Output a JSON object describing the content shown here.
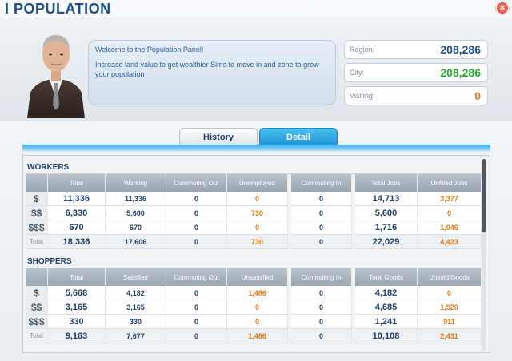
{
  "window": {
    "title": "I POPULATION",
    "close_label": "×"
  },
  "advisor": {
    "line1": "Welcome to the Population Panel!",
    "line2": "Increase land value to get wealthier Sims to move in and zone to grow your population"
  },
  "stats": {
    "region": {
      "label": "Region:",
      "value": "208,286",
      "color": "#1a4f8a"
    },
    "city": {
      "label": "City:",
      "value": "208,286",
      "color": "#2aa32a"
    },
    "visiting": {
      "label": "Visiting:",
      "value": "0",
      "color": "#e07a10"
    }
  },
  "tabs": {
    "history": "History",
    "detail": "Detail"
  },
  "workers": {
    "title": "WORKERS",
    "headers": [
      "Total",
      "Working",
      "Commuting Out",
      "Unemployed",
      "Commuting In",
      "Total Jobs",
      "Unfilled Jobs"
    ],
    "rows": [
      {
        "icon": "$",
        "total": "11,336",
        "working": "11,336",
        "out": "0",
        "unemployed": "0",
        "in": "0",
        "jobs": "14,713",
        "unfilled": "3,377"
      },
      {
        "icon": "$$",
        "total": "6,330",
        "working": "5,600",
        "out": "0",
        "unemployed": "730",
        "in": "0",
        "jobs": "5,600",
        "unfilled": "0"
      },
      {
        "icon": "$$$",
        "total": "670",
        "working": "670",
        "out": "0",
        "unemployed": "0",
        "in": "0",
        "jobs": "1,716",
        "unfilled": "1,046"
      },
      {
        "icon": "Total",
        "total": "18,336",
        "working": "17,606",
        "out": "0",
        "unemployed": "730",
        "in": "0",
        "jobs": "22,029",
        "unfilled": "4,423"
      }
    ]
  },
  "shoppers": {
    "title": "SHOPPERS",
    "headers": [
      "Total",
      "Satisfied",
      "Commuting Out",
      "Unsatisfied",
      "Commuting In",
      "Total Goods",
      "Unsold Goods"
    ],
    "rows": [
      {
        "icon": "$",
        "total": "5,668",
        "satisfied": "4,182",
        "out": "0",
        "unsatisfied": "1,486",
        "in": "0",
        "goods": "4,182",
        "unsold": "0"
      },
      {
        "icon": "$$",
        "total": "3,165",
        "satisfied": "3,165",
        "out": "0",
        "unsatisfied": "0",
        "in": "0",
        "goods": "4,685",
        "unsold": "1,520"
      },
      {
        "icon": "$$$",
        "total": "330",
        "satisfied": "330",
        "out": "0",
        "unsatisfied": "0",
        "in": "0",
        "goods": "1,241",
        "unsold": "911"
      },
      {
        "icon": "Total",
        "total": "9,163",
        "satisfied": "7,677",
        "out": "0",
        "unsatisfied": "1,486",
        "in": "0",
        "goods": "10,108",
        "unsold": "2,431"
      }
    ]
  }
}
